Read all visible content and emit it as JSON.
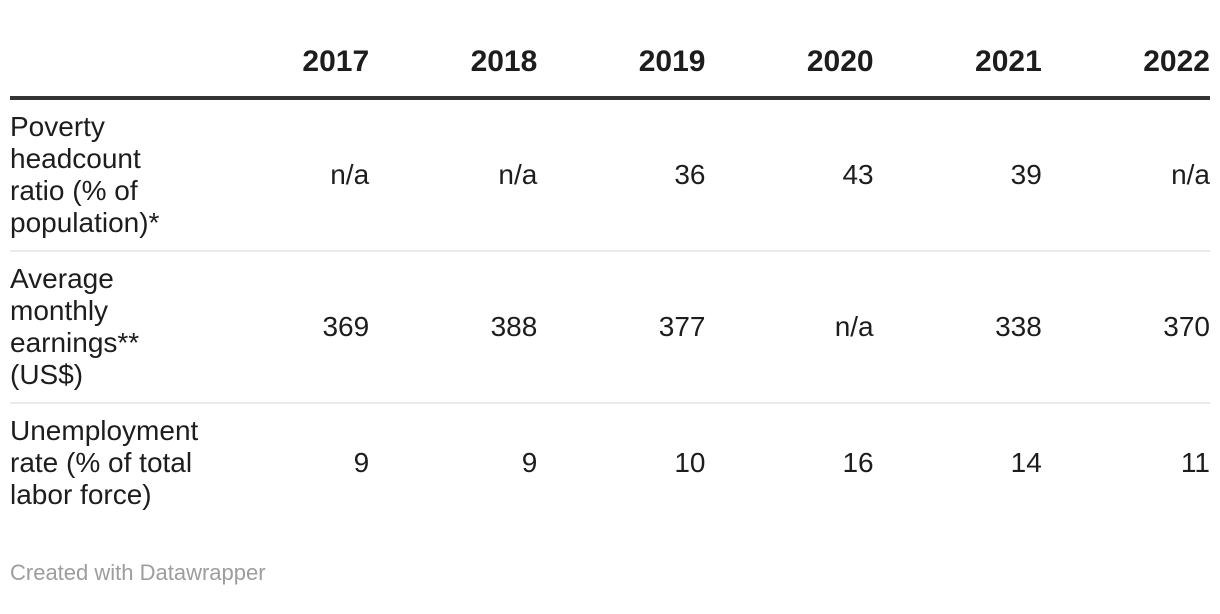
{
  "chart_data": {
    "type": "table",
    "columns": [
      "2017",
      "2018",
      "2019",
      "2020",
      "2021",
      "2022"
    ],
    "rows": [
      {
        "label": "Poverty headcount ratio (% of population)*",
        "values": [
          "n/a",
          "n/a",
          "36",
          "43",
          "39",
          "n/a"
        ]
      },
      {
        "label": "Average monthly earnings** (US$)",
        "values": [
          "369",
          "388",
          "377",
          "n/a",
          "338",
          "370"
        ]
      },
      {
        "label": "Unemployment rate (% of total labor force)",
        "values": [
          "9",
          "9",
          "10",
          "16",
          "14",
          "11"
        ]
      }
    ],
    "title": "",
    "legend_position": "none",
    "grid": "horizontal-rules-only"
  },
  "footer": {
    "credit": "Created with Datawrapper"
  },
  "colors": {
    "background": "#ffffff",
    "text": "#1d1d1d",
    "header_rule": "#333333",
    "row_rule": "#ebebeb",
    "credit_text": "#9d9d9d"
  }
}
